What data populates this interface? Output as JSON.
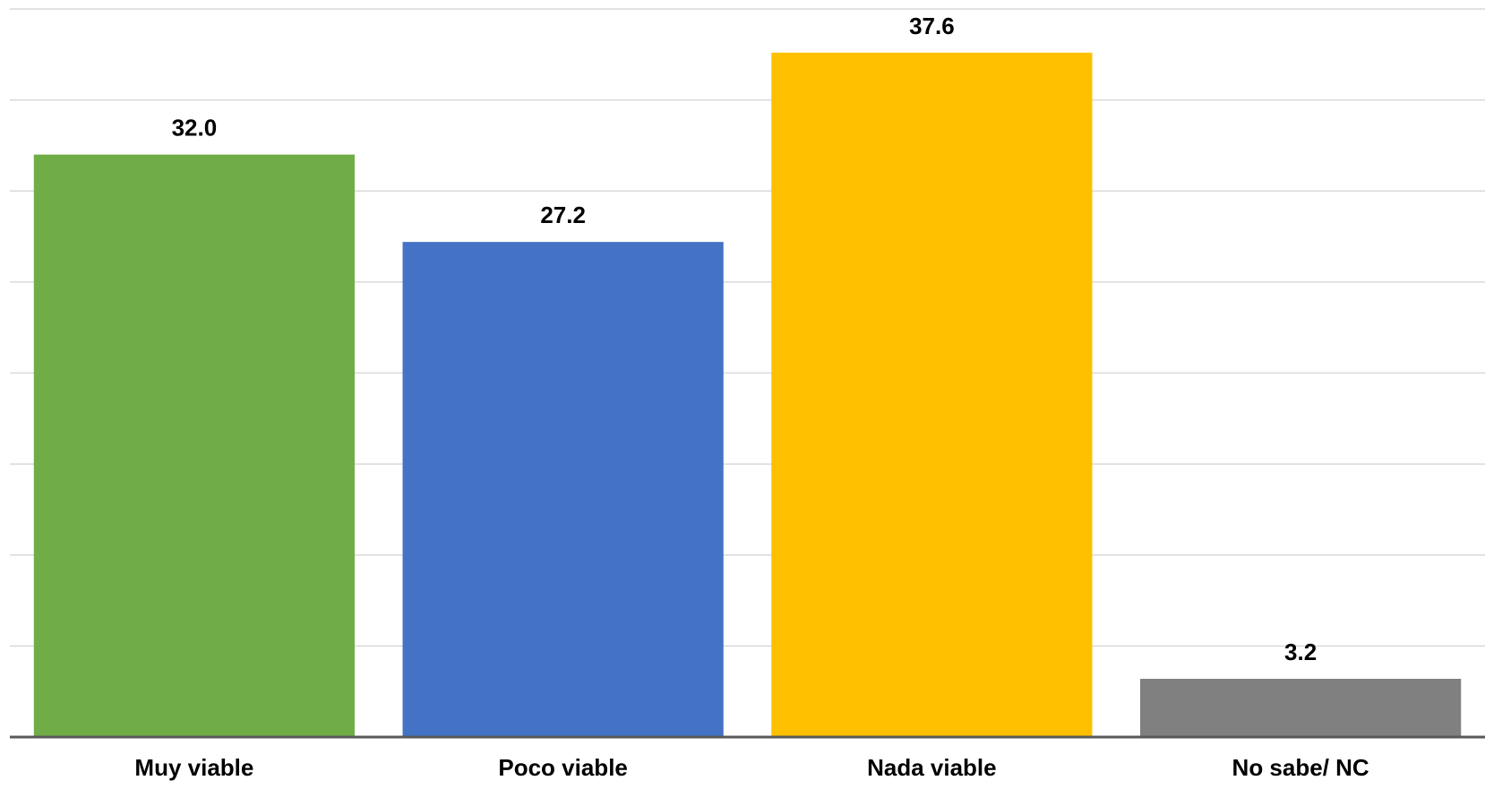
{
  "chart_data": {
    "type": "bar",
    "categories": [
      "Muy viable",
      "Poco viable",
      "Nada viable",
      "No sabe/ NC"
    ],
    "values": [
      32.0,
      27.2,
      37.6,
      3.2
    ],
    "data_labels": [
      "32.0",
      "27.2",
      "37.6",
      "3.2"
    ],
    "colors": [
      "#70AD47",
      "#4472C4",
      "#FFC000",
      "#808080"
    ],
    "ylim": [
      0,
      40
    ],
    "y_gridline_step": 5,
    "grid": true,
    "legend": "none",
    "title": "",
    "xlabel": "",
    "ylabel": ""
  }
}
